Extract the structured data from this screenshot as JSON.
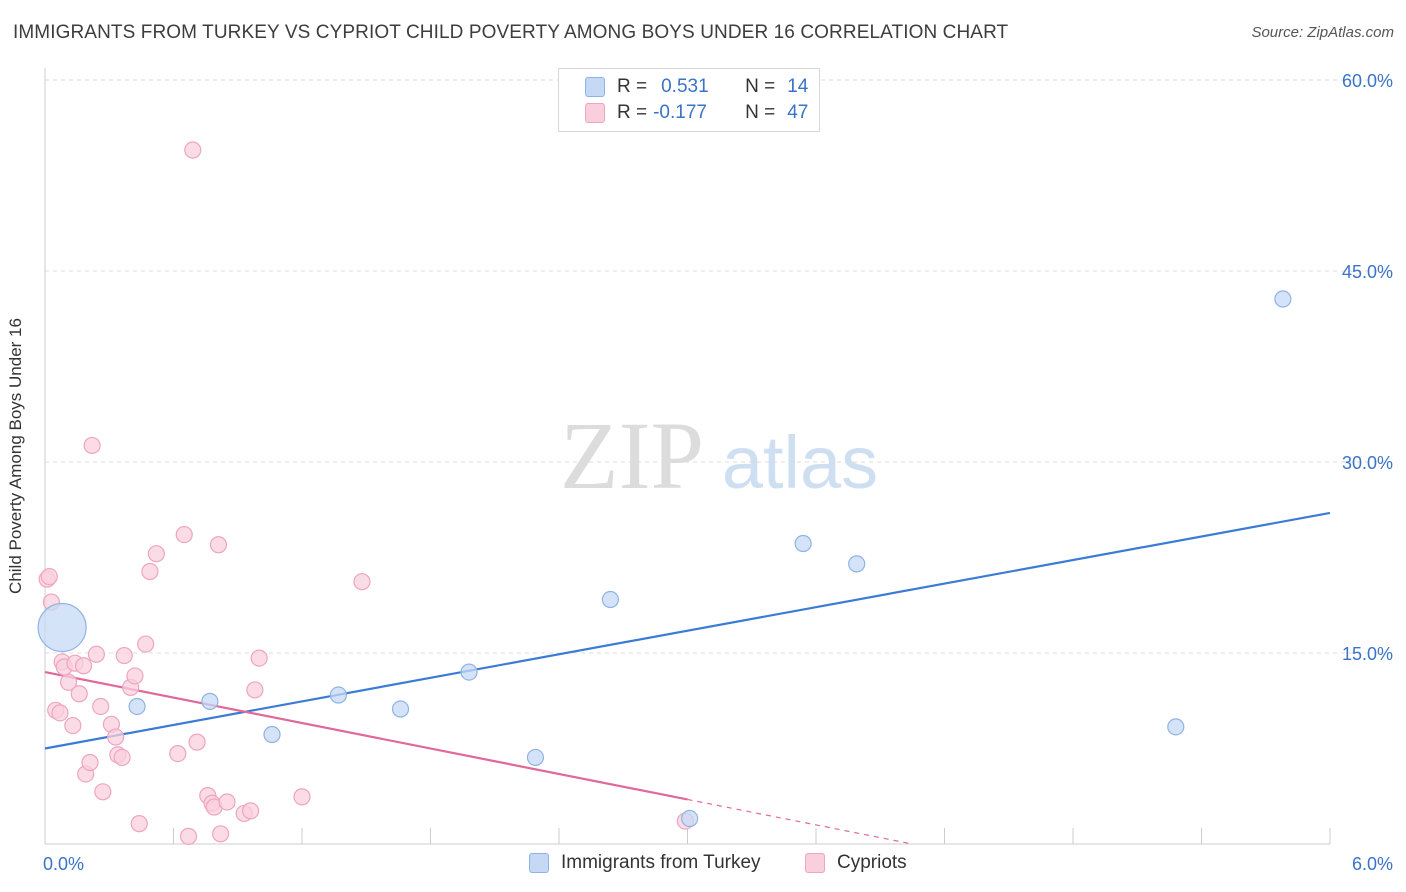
{
  "title": "IMMIGRANTS FROM TURKEY VS CYPRIOT CHILD POVERTY AMONG BOYS UNDER 16 CORRELATION CHART",
  "source": "Source: ZipAtlas.com",
  "watermark": {
    "zip": "ZIP",
    "atlas": "atlas"
  },
  "colors": {
    "blue": "#3a7bd5",
    "blue_fill": "#c5d9f5",
    "blue_stroke": "#8fb3e6",
    "pink": "#e0699a",
    "pink_fill": "#f9cfdd",
    "pink_stroke": "#eea5bf",
    "axis_text": "#3a73c7"
  },
  "legend": {
    "rows": [
      {
        "r_label": "R =",
        "r_value": "0.531",
        "n_label": "N =",
        "n_value": "14"
      },
      {
        "r_label": "R =",
        "r_value": "-0.177",
        "n_label": "N =",
        "n_value": "47"
      }
    ]
  },
  "bottom_legend": {
    "turkey": "Immigrants from Turkey",
    "cypriots": "Cypriots"
  },
  "chart_data": {
    "type": "scatter",
    "title": "IMMIGRANTS FROM TURKEY VS CYPRIOT CHILD POVERTY AMONG BOYS UNDER 16 CORRELATION CHART",
    "xlabel": "",
    "ylabel": "Child Poverty Among Boys Under 16",
    "xlim": [
      0,
      6.0
    ],
    "ylim": [
      0,
      60
    ],
    "x_tick_labels": [
      "0.0%",
      "6.0%"
    ],
    "y_ticks": [
      15,
      30,
      45,
      60
    ],
    "y_tick_labels": [
      "15.0%",
      "30.0%",
      "45.0%",
      "60.0%"
    ],
    "grid": true,
    "legend_position": "top-center",
    "series": [
      {
        "name": "Immigrants from Turkey",
        "points": [
          [
            0.08,
            17.0,
            3.0
          ],
          [
            0.43,
            10.8,
            1
          ],
          [
            0.77,
            11.2,
            1
          ],
          [
            1.06,
            8.6,
            1
          ],
          [
            1.37,
            11.7,
            1
          ],
          [
            1.66,
            10.6,
            1
          ],
          [
            1.98,
            13.5,
            1
          ],
          [
            2.29,
            6.8,
            1
          ],
          [
            2.64,
            19.2,
            1
          ],
          [
            3.01,
            2.0,
            1
          ],
          [
            3.54,
            23.6,
            1
          ],
          [
            3.79,
            22.0,
            1
          ],
          [
            5.28,
            9.2,
            1
          ],
          [
            5.78,
            42.8,
            1
          ]
        ],
        "trend": {
          "x0": 0.0,
          "y0": 7.5,
          "x1": 6.0,
          "y1": 26.0
        }
      },
      {
        "name": "Cypriots",
        "points": [
          [
            0.01,
            20.8,
            1
          ],
          [
            0.03,
            19.0,
            1
          ],
          [
            0.05,
            10.5,
            1
          ],
          [
            0.07,
            10.3,
            1
          ],
          [
            0.08,
            14.3,
            1
          ],
          [
            0.09,
            13.9,
            1
          ],
          [
            0.11,
            12.7,
            1
          ],
          [
            0.13,
            9.3,
            1
          ],
          [
            0.14,
            14.2,
            1
          ],
          [
            0.16,
            11.8,
            1
          ],
          [
            0.18,
            14.0,
            1
          ],
          [
            0.19,
            5.5,
            1
          ],
          [
            0.21,
            6.4,
            1
          ],
          [
            0.22,
            31.3,
            1
          ],
          [
            0.24,
            14.9,
            1
          ],
          [
            0.26,
            10.8,
            1
          ],
          [
            0.27,
            4.1,
            1
          ],
          [
            0.31,
            9.4,
            1
          ],
          [
            0.33,
            8.4,
            1
          ],
          [
            0.34,
            7.0,
            1
          ],
          [
            0.36,
            6.8,
            1
          ],
          [
            0.37,
            14.8,
            1
          ],
          [
            0.4,
            12.3,
            1
          ],
          [
            0.42,
            13.2,
            1
          ],
          [
            0.44,
            1.6,
            1
          ],
          [
            0.47,
            15.7,
            1
          ],
          [
            0.49,
            21.4,
            1
          ],
          [
            0.52,
            22.8,
            1
          ],
          [
            0.62,
            7.1,
            1
          ],
          [
            0.65,
            24.3,
            1
          ],
          [
            0.67,
            0.6,
            1
          ],
          [
            0.69,
            54.5,
            1
          ],
          [
            0.71,
            8.0,
            1
          ],
          [
            0.76,
            3.8,
            1
          ],
          [
            0.78,
            3.2,
            1
          ],
          [
            0.79,
            2.9,
            1
          ],
          [
            0.81,
            23.5,
            1
          ],
          [
            0.82,
            0.8,
            1
          ],
          [
            0.85,
            3.3,
            1
          ],
          [
            0.93,
            2.4,
            1
          ],
          [
            0.96,
            2.6,
            1
          ],
          [
            0.98,
            12.1,
            1
          ],
          [
            1.0,
            14.6,
            1
          ],
          [
            1.2,
            3.7,
            1
          ],
          [
            1.48,
            20.6,
            1
          ],
          [
            2.99,
            1.8,
            1
          ],
          [
            0.02,
            21.0,
            1
          ]
        ],
        "trend": {
          "x0": 0.0,
          "y0": 13.5,
          "x1": 3.0,
          "y1": 3.5,
          "dash_to_x": 4.05,
          "dash_to_y": 0.0
        }
      }
    ]
  }
}
